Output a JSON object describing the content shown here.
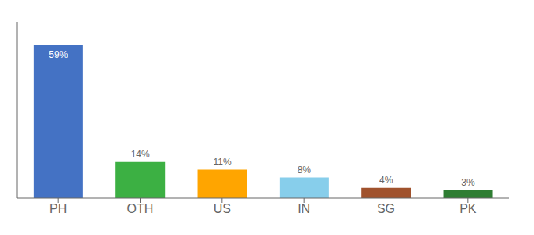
{
  "chart_data": {
    "type": "bar",
    "categories": [
      "PH",
      "OTH",
      "US",
      "IN",
      "SG",
      "PK"
    ],
    "values": [
      59,
      14,
      11,
      8,
      4,
      3
    ],
    "value_labels": [
      "59%",
      "14%",
      "11%",
      "8%",
      "4%",
      "3%"
    ],
    "colors": [
      "#4472C4",
      "#3CB043",
      "#FFA500",
      "#87CEEB",
      "#A0522D",
      "#2E7D32"
    ],
    "ylim": [
      0,
      68
    ],
    "data_labels": true,
    "tick_labels": "x",
    "grid": false
  }
}
